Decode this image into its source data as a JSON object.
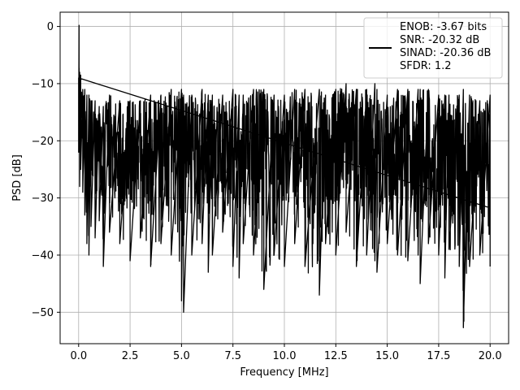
{
  "chart_data": {
    "type": "line",
    "title": "",
    "xlabel": "Frequency [MHz]",
    "ylabel": "PSD [dB]",
    "xlim": [
      -0.9,
      20.9
    ],
    "ylim": [
      -55.5,
      2.5
    ],
    "x_ticks": [
      0.0,
      2.5,
      5.0,
      7.5,
      10.0,
      12.5,
      15.0,
      17.5,
      20.0
    ],
    "x_tick_labels": [
      "0.0",
      "2.5",
      "5.0",
      "7.5",
      "10.0",
      "12.5",
      "15.0",
      "17.5",
      "20.0"
    ],
    "y_ticks": [
      0,
      -10,
      -20,
      -30,
      -40,
      -50
    ],
    "y_tick_labels": [
      "0",
      "−10",
      "−20",
      "−30",
      "−40",
      "−50"
    ],
    "grid": true,
    "legend_position": "top-right",
    "legend_lines": [
      "ENOB: -3.67 bits",
      "SNR: -20.32 dB",
      "SINAD: -20.36 dB",
      "SFDR: 1.2"
    ],
    "line_color": "#000000",
    "series": [
      {
        "x": [
          0.0,
          0.02,
          0.05,
          0.1,
          0.2,
          0.3,
          0.4,
          0.5,
          0.6,
          0.8,
          1.0,
          1.2,
          1.5,
          2.0,
          2.5,
          3.0,
          3.5,
          4.0,
          4.5,
          5.0,
          5.1,
          5.5,
          6.0,
          6.3,
          6.5,
          7.0,
          7.5,
          7.8,
          8.0,
          8.5,
          9.0,
          9.5,
          10.0,
          10.5,
          11.0,
          11.7,
          12.0,
          12.5,
          13.0,
          13.5,
          14.0,
          14.4,
          14.5,
          15.0,
          15.5,
          16.0,
          16.5,
          16.6,
          17.0,
          17.5,
          17.8,
          18.0,
          18.5,
          18.7,
          19.0,
          19.5,
          20.0
        ],
        "lower": [
          -22,
          -16,
          -28,
          -25,
          -29,
          -33,
          -38,
          -40,
          -35,
          -37,
          -34,
          -42,
          -36,
          -38,
          -41,
          -37,
          -42,
          -38,
          -40,
          -48,
          -50,
          -40,
          -38,
          -43,
          -40,
          -36,
          -42,
          -44,
          -38,
          -40,
          -46,
          -40,
          -42,
          -38,
          -42,
          -47,
          -38,
          -40,
          -36,
          -42,
          -40,
          -41,
          -43,
          -38,
          -40,
          -41,
          -40,
          -45,
          -38,
          -40,
          -44,
          -39,
          -42,
          -52.7,
          -42,
          -40,
          -42
        ],
        "upper": [
          -9,
          0.2,
          -8,
          -8.5,
          -11,
          -11,
          -12,
          -12,
          -13,
          -13,
          -14,
          -14,
          -12,
          -13,
          -13,
          -13,
          -12,
          -12,
          -11,
          -11,
          -12,
          -12,
          -11,
          -12,
          -12,
          -12,
          -11,
          -12,
          -12,
          -11,
          -11,
          -12,
          -12,
          -11,
          -11,
          -11,
          -12,
          -11,
          -10,
          -11,
          -11,
          -10,
          -11,
          -12,
          -11,
          -11,
          -11,
          -11,
          -11,
          -12,
          -12,
          -12,
          -12,
          -11,
          -12,
          -13,
          -12
        ]
      }
    ]
  }
}
